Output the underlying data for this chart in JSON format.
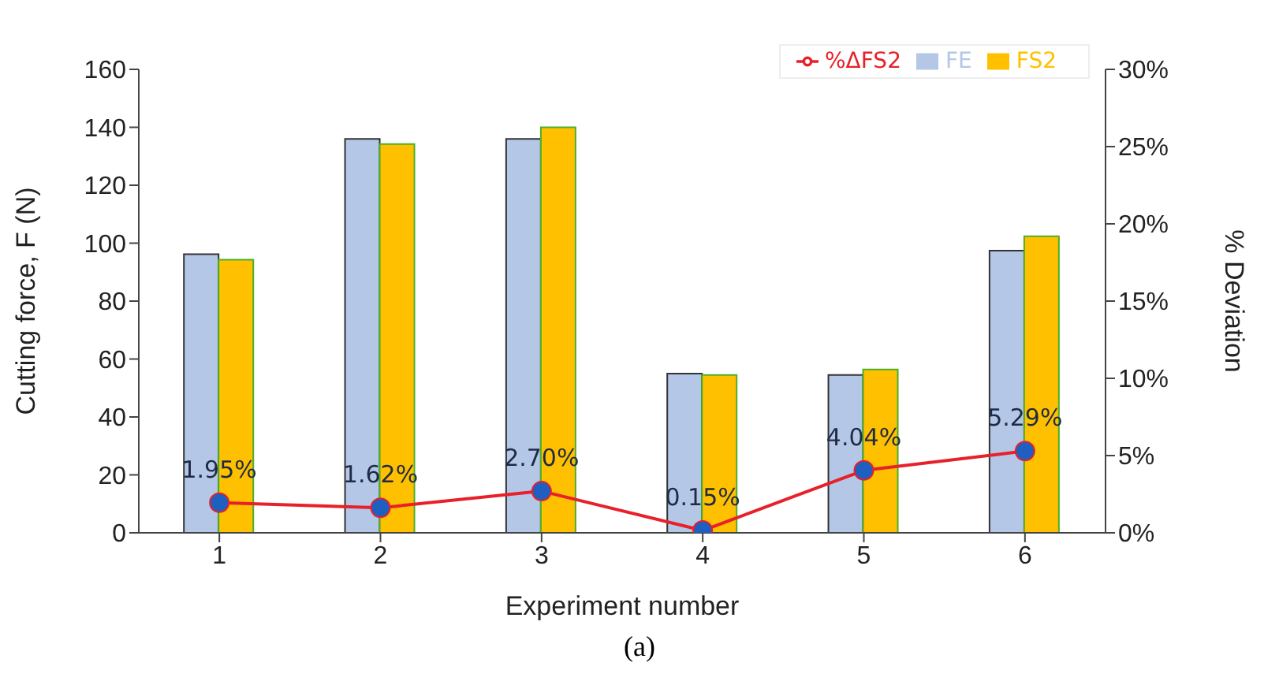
{
  "chart_data": {
    "type": "bar",
    "xlabel": "Experiment number",
    "ylabel": "Cutting force, F (N)",
    "y2label": "% Deviation",
    "categories": [
      "1",
      "2",
      "3",
      "4",
      "5",
      "6"
    ],
    "series": [
      {
        "name": "FE",
        "color": "#b4c7e7",
        "values": [
          96.2,
          136,
          136,
          55,
          54.5,
          97.4
        ]
      },
      {
        "name": "FS2",
        "color": "#ffc000",
        "values": [
          94.3,
          134.2,
          140,
          54.5,
          56.4,
          102.4
        ]
      },
      {
        "name": "%ΔFS2",
        "type": "line",
        "axis": "y2",
        "color": "#e8202a",
        "values": [
          1.95,
          1.62,
          2.7,
          0.15,
          4.04,
          5.29
        ],
        "value_labels": [
          "1.95%",
          "1.62%",
          "2.70%",
          "0.15%",
          "4.04%",
          "5.29%"
        ]
      }
    ],
    "ylim": [
      0,
      160
    ],
    "yticks": [
      0,
      20,
      40,
      60,
      80,
      100,
      120,
      140,
      160
    ],
    "y2lim": [
      0,
      30
    ],
    "y2ticks": [
      {
        "value": 0,
        "label": "0%"
      },
      {
        "value": 5,
        "label": "5%"
      },
      {
        "value": 10,
        "label": "10%"
      },
      {
        "value": 15,
        "label": "15%"
      },
      {
        "value": 20,
        "label": "20%"
      },
      {
        "value": 25,
        "label": "25%"
      },
      {
        "value": 30,
        "label": "30%"
      }
    ],
    "legend": "top right",
    "marker": "circle",
    "annotations": [
      "(a)"
    ]
  }
}
